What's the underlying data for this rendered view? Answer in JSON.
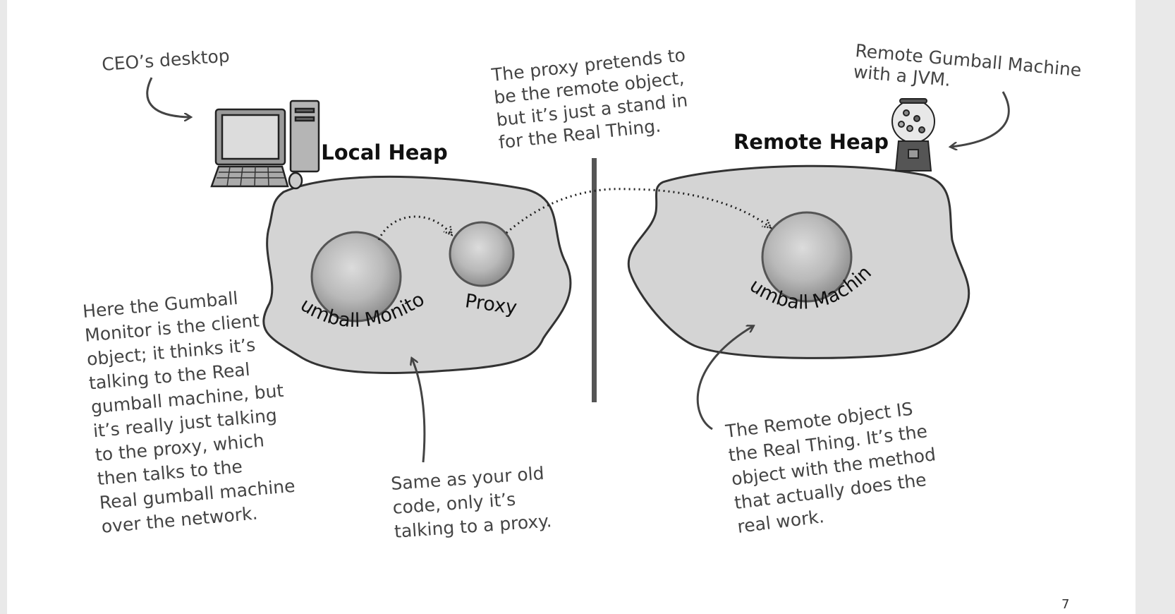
{
  "annotations": {
    "ceo_desktop": "CEO’s desktop",
    "remote_machine": [
      "Remote Gumball Machine",
      "with a JVM."
    ],
    "proxy_pretends": [
      "The proxy pretends to",
      "be the remote object,",
      "but it’s just a stand in",
      "for the Real Thing."
    ],
    "client_note": [
      "Here the Gumball",
      "Monitor is the client",
      "object; it thinks it’s",
      "talking to the Real",
      "gumball machine, but",
      "it’s really just talking",
      "to the proxy, which",
      "then talks to the",
      "Real gumball machine",
      "over the network."
    ],
    "old_code_note": [
      "Same as your old",
      "code, only it’s",
      "talking to a proxy."
    ],
    "remote_object_note": [
      "The Remote object IS",
      "the Real Thing. It’s the",
      "object with the method",
      "that actually does the",
      "real work."
    ]
  },
  "heaps": {
    "local_title": "Local Heap",
    "remote_title": "Remote Heap"
  },
  "objects": {
    "gumball_monitor": "Gumball Monitor",
    "proxy": "Proxy",
    "gumball_machine": "Gumball Machine"
  },
  "page_number": "7"
}
